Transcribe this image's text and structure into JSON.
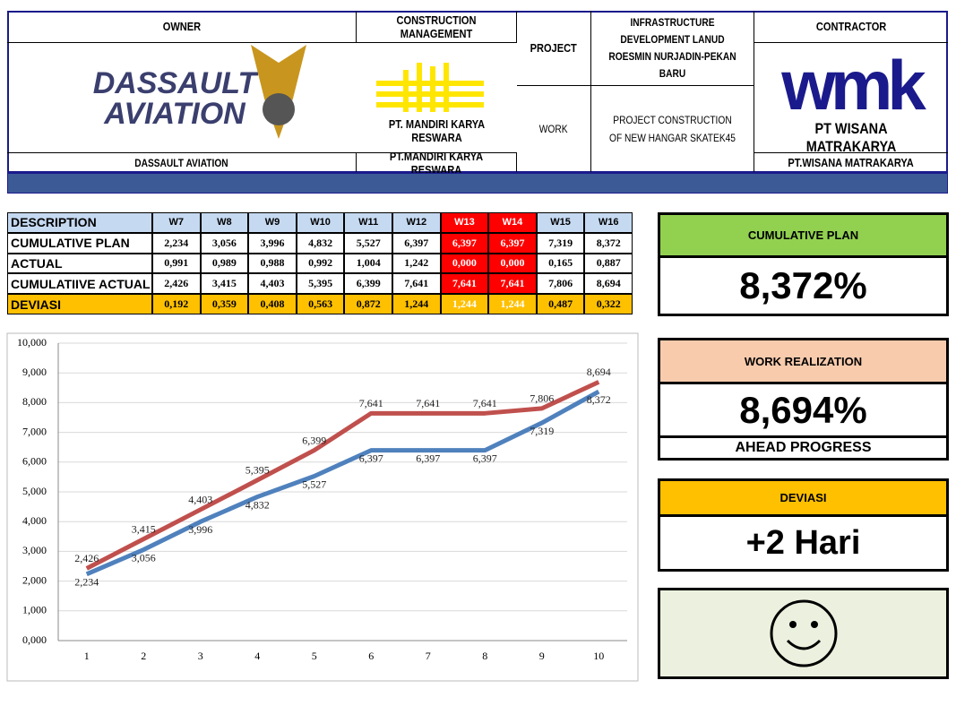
{
  "header": {
    "owner_title": "OWNER",
    "owner_logo": "DASSAULT AVIATION",
    "owner_name": "DASSAULT AVIATION",
    "cm_title": "CONSTRUCTION MANAGEMENT",
    "cm_logo": "PT. MANDIRI KARYA RESWARA",
    "cm_name": "PT.MANDIRI KARYA RESWARA",
    "project_label": "PROJECT",
    "project_text": "INFRASTRUCTURE DEVELOPMENT LANUD ROESMIN NURJADIN-PEKAN BARU",
    "work_label": "WORK",
    "work_text": "PROJECT CONSTRUCTION OF NEW HANGAR SKATEK45",
    "contractor_title": "CONTRACTOR",
    "contractor_logo": "wmk",
    "contractor_logo_name": "PT WISANA MATRAKARYA",
    "contractor_name": "PT.WISANA MATRAKARYA"
  },
  "table": {
    "header": [
      "DESCRIPTION",
      "W7",
      "W8",
      "W9",
      "W10",
      "W11",
      "W12",
      "W13",
      "W14",
      "W15",
      "W16"
    ],
    "rows": [
      [
        "CUMULATIVE PLAN",
        "2,234",
        "3,056",
        "3,996",
        "4,832",
        "5,527",
        "6,397",
        "6,397",
        "6,397",
        "7,319",
        "8,372"
      ],
      [
        "ACTUAL",
        "0,991",
        "0,989",
        "0,988",
        "0,992",
        "1,004",
        "1,242",
        "0,000",
        "0,000",
        "0,165",
        "0,887"
      ],
      [
        "CUMULATIIVE ACTUAL",
        "2,426",
        "3,415",
        "4,403",
        "5,395",
        "6,399",
        "7,641",
        "7,641",
        "7,641",
        "7,806",
        "8,694"
      ],
      [
        "DEVIASI",
        "0,192",
        "0,359",
        "0,408",
        "0,563",
        "0,872",
        "1,244",
        "1,244",
        "1,244",
        "0,487",
        "0,322"
      ]
    ],
    "highlight_columns": [
      7,
      8
    ]
  },
  "panels": {
    "plan_title": "CUMULATIVE PLAN",
    "plan_value": "8,372%",
    "work_title": "WORK REALIZATION",
    "work_value": "8,694%",
    "work_note": "AHEAD PROGRESS",
    "dev_title": "DEVIASI",
    "dev_value": "+2 Hari"
  },
  "chart_data": {
    "type": "line",
    "categories": [
      "1",
      "2",
      "3",
      "4",
      "5",
      "6",
      "7",
      "8",
      "9",
      "10"
    ],
    "series": [
      {
        "color": "#4f81bd",
        "values": [
          2.234,
          3.056,
          3.996,
          4.832,
          5.527,
          6.397,
          6.397,
          6.397,
          7.319,
          8.372
        ],
        "value_labels": [
          "2,234",
          "3,056",
          "3,996",
          "4,832",
          "5,527",
          "6,397",
          "6,397",
          "6,397",
          "7,319",
          "8,372"
        ]
      },
      {
        "color": "#c0504d",
        "values": [
          2.426,
          3.415,
          4.403,
          5.395,
          6.399,
          7.641,
          7.641,
          7.641,
          7.806,
          8.694
        ],
        "value_labels": [
          "2,426",
          "3,415",
          "4,403",
          "5,395",
          "6,399",
          "7,641",
          "7,641",
          "7,641",
          "7,806",
          "8,694"
        ]
      }
    ],
    "ylim": [
      0,
      10
    ],
    "yticks": [
      {
        "value": 0,
        "label": "0,000"
      },
      {
        "value": 1,
        "label": "1,000"
      },
      {
        "value": 2,
        "label": "2,000"
      },
      {
        "value": 3,
        "label": "3,000"
      },
      {
        "value": 4,
        "label": "4,000"
      },
      {
        "value": 5,
        "label": "5,000"
      },
      {
        "value": 6,
        "label": "6,000"
      },
      {
        "value": 7,
        "label": "7,000"
      },
      {
        "value": 8,
        "label": "8,000"
      },
      {
        "value": 9,
        "label": "9,000"
      },
      {
        "value": 10,
        "label": "10,000"
      }
    ],
    "grid": true
  }
}
